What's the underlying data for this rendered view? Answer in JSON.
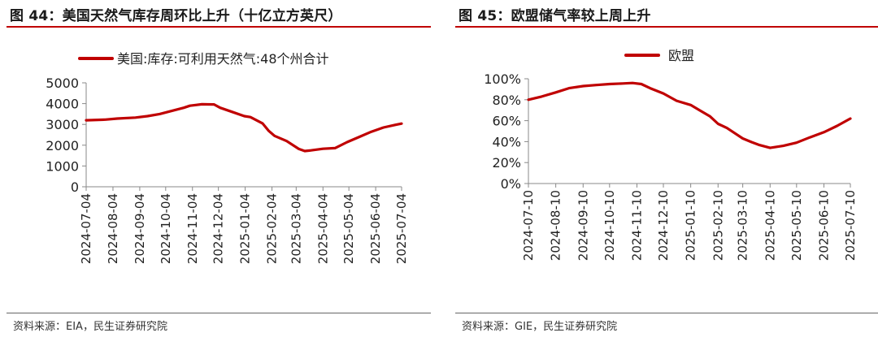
{
  "charts": [
    {
      "title": "图 44：美国天然气库存周环比上升（十亿立方英尺）",
      "source": "资料来源：EIA，民生证券研究院",
      "color": "#c00000",
      "chart_data": {
        "type": "line",
        "title": "图 44：美国天然气库存周环比上升（十亿立方英尺）",
        "xlabel": "",
        "ylabel": "",
        "ylim": [
          0,
          5000
        ],
        "yticks": [
          0,
          1000,
          2000,
          3000,
          4000,
          5000
        ],
        "ytick_labels": [
          "0",
          "1000",
          "2000",
          "3000",
          "4000",
          "5000"
        ],
        "xticks": [
          "2024-07-04",
          "2024-08-04",
          "2024-09-04",
          "2024-10-04",
          "2024-11-04",
          "2024-12-04",
          "2025-01-04",
          "2025-02-04",
          "2025-03-04",
          "2025-04-04",
          "2025-05-04",
          "2025-06-04",
          "2025-07-04"
        ],
        "legend_position": "top-center",
        "grid": false,
        "series": [
          {
            "name": "美国:库存:可利用天然气:48个州合计",
            "x": [
              "2024-07-04",
              "2024-07-26",
              "2024-08-09",
              "2024-08-30",
              "2024-09-13",
              "2024-09-27",
              "2024-10-11",
              "2024-10-25",
              "2024-11-01",
              "2024-11-15",
              "2024-11-29",
              "2024-12-06",
              "2024-12-20",
              "2025-01-03",
              "2025-01-10",
              "2025-01-24",
              "2025-01-31",
              "2025-02-07",
              "2025-02-21",
              "2025-03-07",
              "2025-03-14",
              "2025-03-21",
              "2025-04-04",
              "2025-04-18",
              "2025-05-02",
              "2025-05-16",
              "2025-05-30",
              "2025-06-13",
              "2025-06-27",
              "2025-07-04"
            ],
            "y": [
              3200,
              3230,
              3280,
              3330,
              3400,
              3500,
              3650,
              3800,
              3900,
              3970,
              3960,
              3800,
              3600,
              3400,
              3350,
              3050,
              2700,
              2450,
              2200,
              1820,
              1720,
              1750,
              1830,
              1860,
              2150,
              2400,
              2650,
              2850,
              2980,
              3040
            ]
          }
        ]
      }
    },
    {
      "title": "图 45：欧盟储气率较上周上升",
      "source": "资料来源：GIE，民生证券研究院",
      "color": "#c00000",
      "chart_data": {
        "type": "line",
        "title": "图 45：欧盟储气率较上周上升",
        "xlabel": "",
        "ylabel": "",
        "ylim": [
          0,
          100
        ],
        "yticks": [
          0,
          20,
          40,
          60,
          80,
          100
        ],
        "ytick_labels": [
          "0%",
          "20%",
          "40%",
          "60%",
          "80%",
          "100%"
        ],
        "xticks": [
          "2024-07-10",
          "2024-08-10",
          "2024-09-10",
          "2024-10-10",
          "2024-11-10",
          "2024-12-10",
          "2025-01-10",
          "2025-02-10",
          "2025-03-10",
          "2025-04-10",
          "2025-05-10",
          "2025-06-10",
          "2025-07-10"
        ],
        "legend_position": "top-center",
        "grid": false,
        "series": [
          {
            "name": "欧盟",
            "x": [
              "2024-07-10",
              "2024-07-25",
              "2024-08-10",
              "2024-08-25",
              "2024-09-10",
              "2024-09-25",
              "2024-10-10",
              "2024-10-25",
              "2024-11-05",
              "2024-11-15",
              "2024-11-25",
              "2024-12-10",
              "2024-12-25",
              "2025-01-10",
              "2025-01-20",
              "2025-02-01",
              "2025-02-10",
              "2025-02-20",
              "2025-03-01",
              "2025-03-10",
              "2025-03-20",
              "2025-03-28",
              "2025-04-10",
              "2025-04-25",
              "2025-05-10",
              "2025-05-25",
              "2025-06-10",
              "2025-06-25",
              "2025-07-10"
            ],
            "y": [
              80,
              83,
              87,
              91,
              93,
              94,
              95,
              95.5,
              96,
              95,
              91,
              86,
              79,
              75,
              70,
              64,
              57,
              53,
              48,
              43,
              39.5,
              37,
              34,
              36,
              39,
              44,
              49,
              55,
              62
            ]
          }
        ]
      }
    }
  ]
}
